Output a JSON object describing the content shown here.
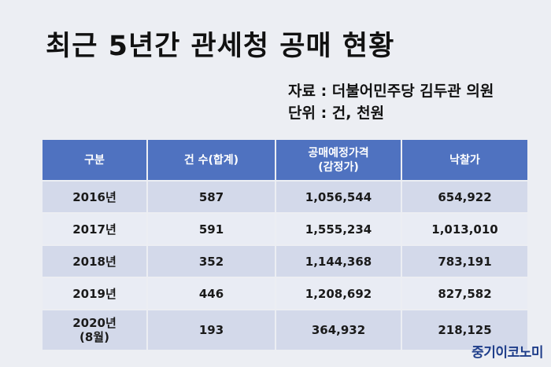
{
  "title": "최근 5년간 관세청 공매 현황",
  "source": "자료 : 더불어민주당 김두관 의원",
  "unit": "단위 : 건, 천원",
  "table": {
    "headers": [
      "구분",
      "건 수(합계)",
      "공매예정가격\n(감정가)",
      "낙찰가"
    ],
    "rows": [
      {
        "year": "2016년",
        "count": "587",
        "appraised": "1,056,544",
        "winning_bid": "654,922"
      },
      {
        "year": "2017년",
        "count": "591",
        "appraised": "1,555,234",
        "winning_bid": "1,013,010"
      },
      {
        "year": "2018년",
        "count": "352",
        "appraised": "1,144,368",
        "winning_bid": "783,191"
      },
      {
        "year": "2019년",
        "count": "446",
        "appraised": "1,208,692",
        "winning_bid": "827,582"
      },
      {
        "year": "2020년\n(8월)",
        "count": "193",
        "appraised": "364,932",
        "winning_bid": "218,125"
      }
    ]
  },
  "logo": "중기이코노미"
}
